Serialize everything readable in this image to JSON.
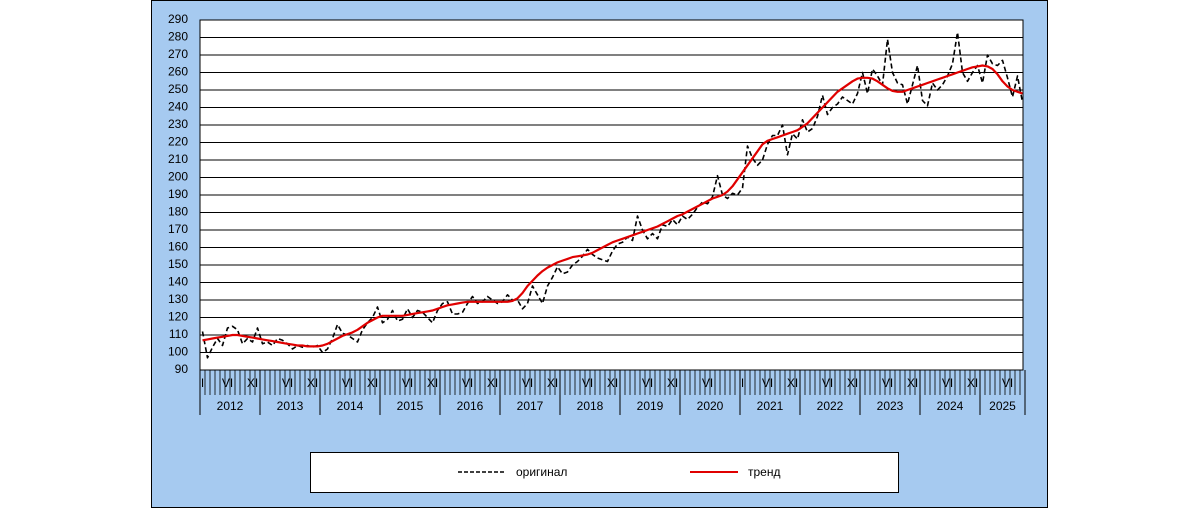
{
  "chart_data": {
    "type": "line",
    "categories": [
      "I",
      null,
      null,
      null,
      null,
      "VI",
      null,
      null,
      null,
      null,
      "XI",
      null,
      null,
      null,
      null,
      null,
      null,
      "VI",
      null,
      null,
      null,
      null,
      "XI",
      null,
      null,
      null,
      null,
      null,
      null,
      "VI",
      null,
      null,
      null,
      null,
      "XI",
      null,
      null,
      null,
      null,
      null,
      null,
      "VI",
      null,
      null,
      null,
      null,
      "XI",
      null,
      null,
      null,
      null,
      null,
      null,
      "VI",
      null,
      null,
      null,
      null,
      "XI",
      null,
      null,
      null,
      null,
      null,
      null,
      "VI",
      null,
      null,
      null,
      null,
      "XI",
      null,
      null,
      null,
      null,
      null,
      null,
      "VI",
      null,
      null,
      null,
      null,
      "XI",
      null,
      null,
      null,
      null,
      null,
      null,
      "VI",
      null,
      null,
      null,
      null,
      "XI",
      null,
      null,
      null,
      null,
      null,
      null,
      "VI",
      null,
      null,
      null,
      null,
      null,
      null,
      "I",
      null,
      null,
      null,
      null,
      "VI",
      null,
      null,
      null,
      null,
      "XI",
      null,
      null,
      null,
      null,
      null,
      null,
      "VI",
      null,
      null,
      null,
      null,
      "XI",
      null,
      null,
      null,
      null,
      null,
      null,
      "VI",
      null,
      null,
      null,
      null,
      "XI",
      null,
      null,
      null,
      null,
      null,
      null,
      "VI",
      null,
      null,
      null,
      null,
      "XI",
      null,
      null,
      null,
      null,
      null,
      null,
      "VI",
      null,
      null,
      null
    ],
    "years": [
      "2012",
      "2013",
      "2014",
      "2015",
      "2016",
      "2017",
      "2018",
      "2019",
      "2020",
      "2021",
      "2022",
      "2023",
      "2024",
      "2025"
    ],
    "series": [
      {
        "name": "оригинал",
        "color": "#000000",
        "dashed": true,
        "values": [
          112,
          97,
          103,
          108,
          104,
          114,
          115,
          113,
          105,
          108,
          106,
          114,
          105,
          106,
          104,
          108,
          107,
          105,
          102,
          104,
          103,
          104,
          103,
          104,
          100,
          102,
          108,
          116,
          111,
          110,
          108,
          106,
          113,
          117,
          120,
          126,
          117,
          119,
          124,
          118,
          119,
          125,
          120,
          124,
          123,
          120,
          117,
          124,
          128,
          129,
          122,
          122,
          123,
          128,
          132,
          128,
          129,
          132,
          130,
          128,
          129,
          133,
          130,
          130,
          125,
          128,
          138,
          133,
          128,
          138,
          143,
          149,
          145,
          146,
          150,
          152,
          155,
          159,
          156,
          154,
          153,
          152,
          158,
          162,
          163,
          166,
          164,
          178,
          170,
          165,
          168,
          165,
          173,
          172,
          176,
          173,
          178,
          176,
          179,
          183,
          186,
          185,
          189,
          201,
          190,
          188,
          191,
          190,
          194,
          218,
          211,
          207,
          210,
          219,
          224,
          224,
          230,
          213,
          225,
          222,
          233,
          226,
          228,
          235,
          247,
          236,
          240,
          242,
          246,
          244,
          242,
          248,
          260,
          248,
          262,
          258,
          253,
          279,
          260,
          254,
          253,
          242,
          253,
          264,
          244,
          241,
          254,
          250,
          253,
          258,
          265,
          283,
          260,
          255,
          260,
          264,
          254,
          270,
          265,
          264,
          267,
          257,
          246,
          258,
          243
        ]
      },
      {
        "name": "тренд",
        "color": "#e00000",
        "dashed": false,
        "values": [
          107,
          107.5,
          108,
          108.5,
          109,
          109.5,
          110,
          110,
          109.5,
          109,
          108.5,
          108,
          107.5,
          107,
          106.5,
          106,
          105.5,
          105,
          104.5,
          104,
          104,
          103.5,
          103.5,
          103.5,
          104,
          105,
          106.5,
          108,
          109.5,
          110.5,
          111.5,
          113,
          115,
          117,
          118.5,
          120,
          121,
          121,
          121,
          121,
          121,
          121.5,
          122,
          122.5,
          123,
          123.5,
          124,
          125,
          126,
          127,
          127.5,
          128,
          128.5,
          129,
          129,
          129,
          129,
          129,
          129,
          129,
          129,
          129,
          129.5,
          131,
          134,
          138,
          141,
          144,
          146.5,
          148.5,
          150,
          151.5,
          152.5,
          153.5,
          154.5,
          155,
          155.5,
          156,
          157,
          158.5,
          160,
          161.5,
          163,
          164,
          165,
          166,
          167,
          168,
          169,
          170,
          171,
          172,
          173.5,
          175,
          176.5,
          178,
          179,
          180.5,
          182,
          183.5,
          185,
          186.5,
          188,
          189,
          190,
          192,
          195,
          199,
          203,
          207,
          211,
          215,
          219,
          221,
          222,
          223,
          224,
          225,
          226,
          227,
          229,
          231,
          234,
          237,
          240,
          243,
          246,
          249,
          251,
          253,
          255,
          256.5,
          257,
          257,
          256.5,
          255,
          253,
          251,
          249.5,
          249,
          249,
          250,
          251,
          252,
          253,
          254,
          255,
          256,
          257,
          258,
          259,
          260,
          261,
          262,
          263,
          263.5,
          264,
          263.5,
          262,
          259,
          255,
          252,
          250,
          249,
          248
        ]
      }
    ],
    "ylim": [
      90,
      290
    ],
    "yticks": [
      90,
      100,
      110,
      120,
      130,
      140,
      150,
      160,
      170,
      180,
      190,
      200,
      210,
      220,
      230,
      240,
      250,
      260,
      270,
      280,
      290
    ],
    "grid": true
  }
}
